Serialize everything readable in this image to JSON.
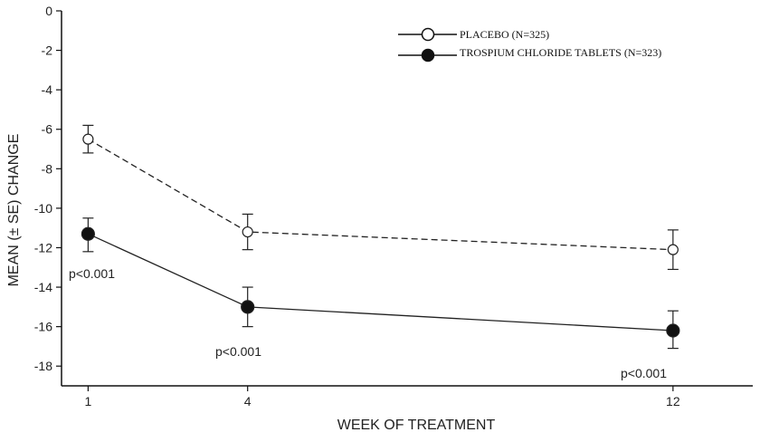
{
  "chart_data": {
    "type": "line",
    "xlabel": "WEEK OF TREATMENT",
    "ylabel": "MEAN (± SE) CHANGE",
    "x": [
      1,
      4,
      12
    ],
    "xlim": [
      0.5,
      13.5
    ],
    "ylim": [
      -19,
      0
    ],
    "yticks": [
      0,
      -2,
      -4,
      -6,
      -8,
      -10,
      -12,
      -14,
      -16,
      -18
    ],
    "xticks": [
      1,
      4,
      12
    ],
    "grid": false,
    "legend_position": "top-right",
    "series": [
      {
        "name": "PLACEBO (N=325)",
        "marker": "open-circle",
        "line_style": "dashed",
        "values": [
          -6.5,
          -11.2,
          -12.1
        ],
        "se_low": [
          -7.2,
          -12.1,
          -13.1
        ],
        "se_high": [
          -5.8,
          -10.3,
          -11.1
        ]
      },
      {
        "name": "TROSPIUM CHLORIDE TABLETS (N=323)",
        "marker": "filled-circle",
        "line_style": "solid",
        "values": [
          -11.3,
          -15.0,
          -16.2
        ],
        "se_low": [
          -12.2,
          -16.0,
          -17.1
        ],
        "se_high": [
          -10.5,
          -14.0,
          -15.2
        ]
      }
    ],
    "annotations": [
      "p<0.001",
      "p<0.001",
      "p<0.001"
    ]
  }
}
